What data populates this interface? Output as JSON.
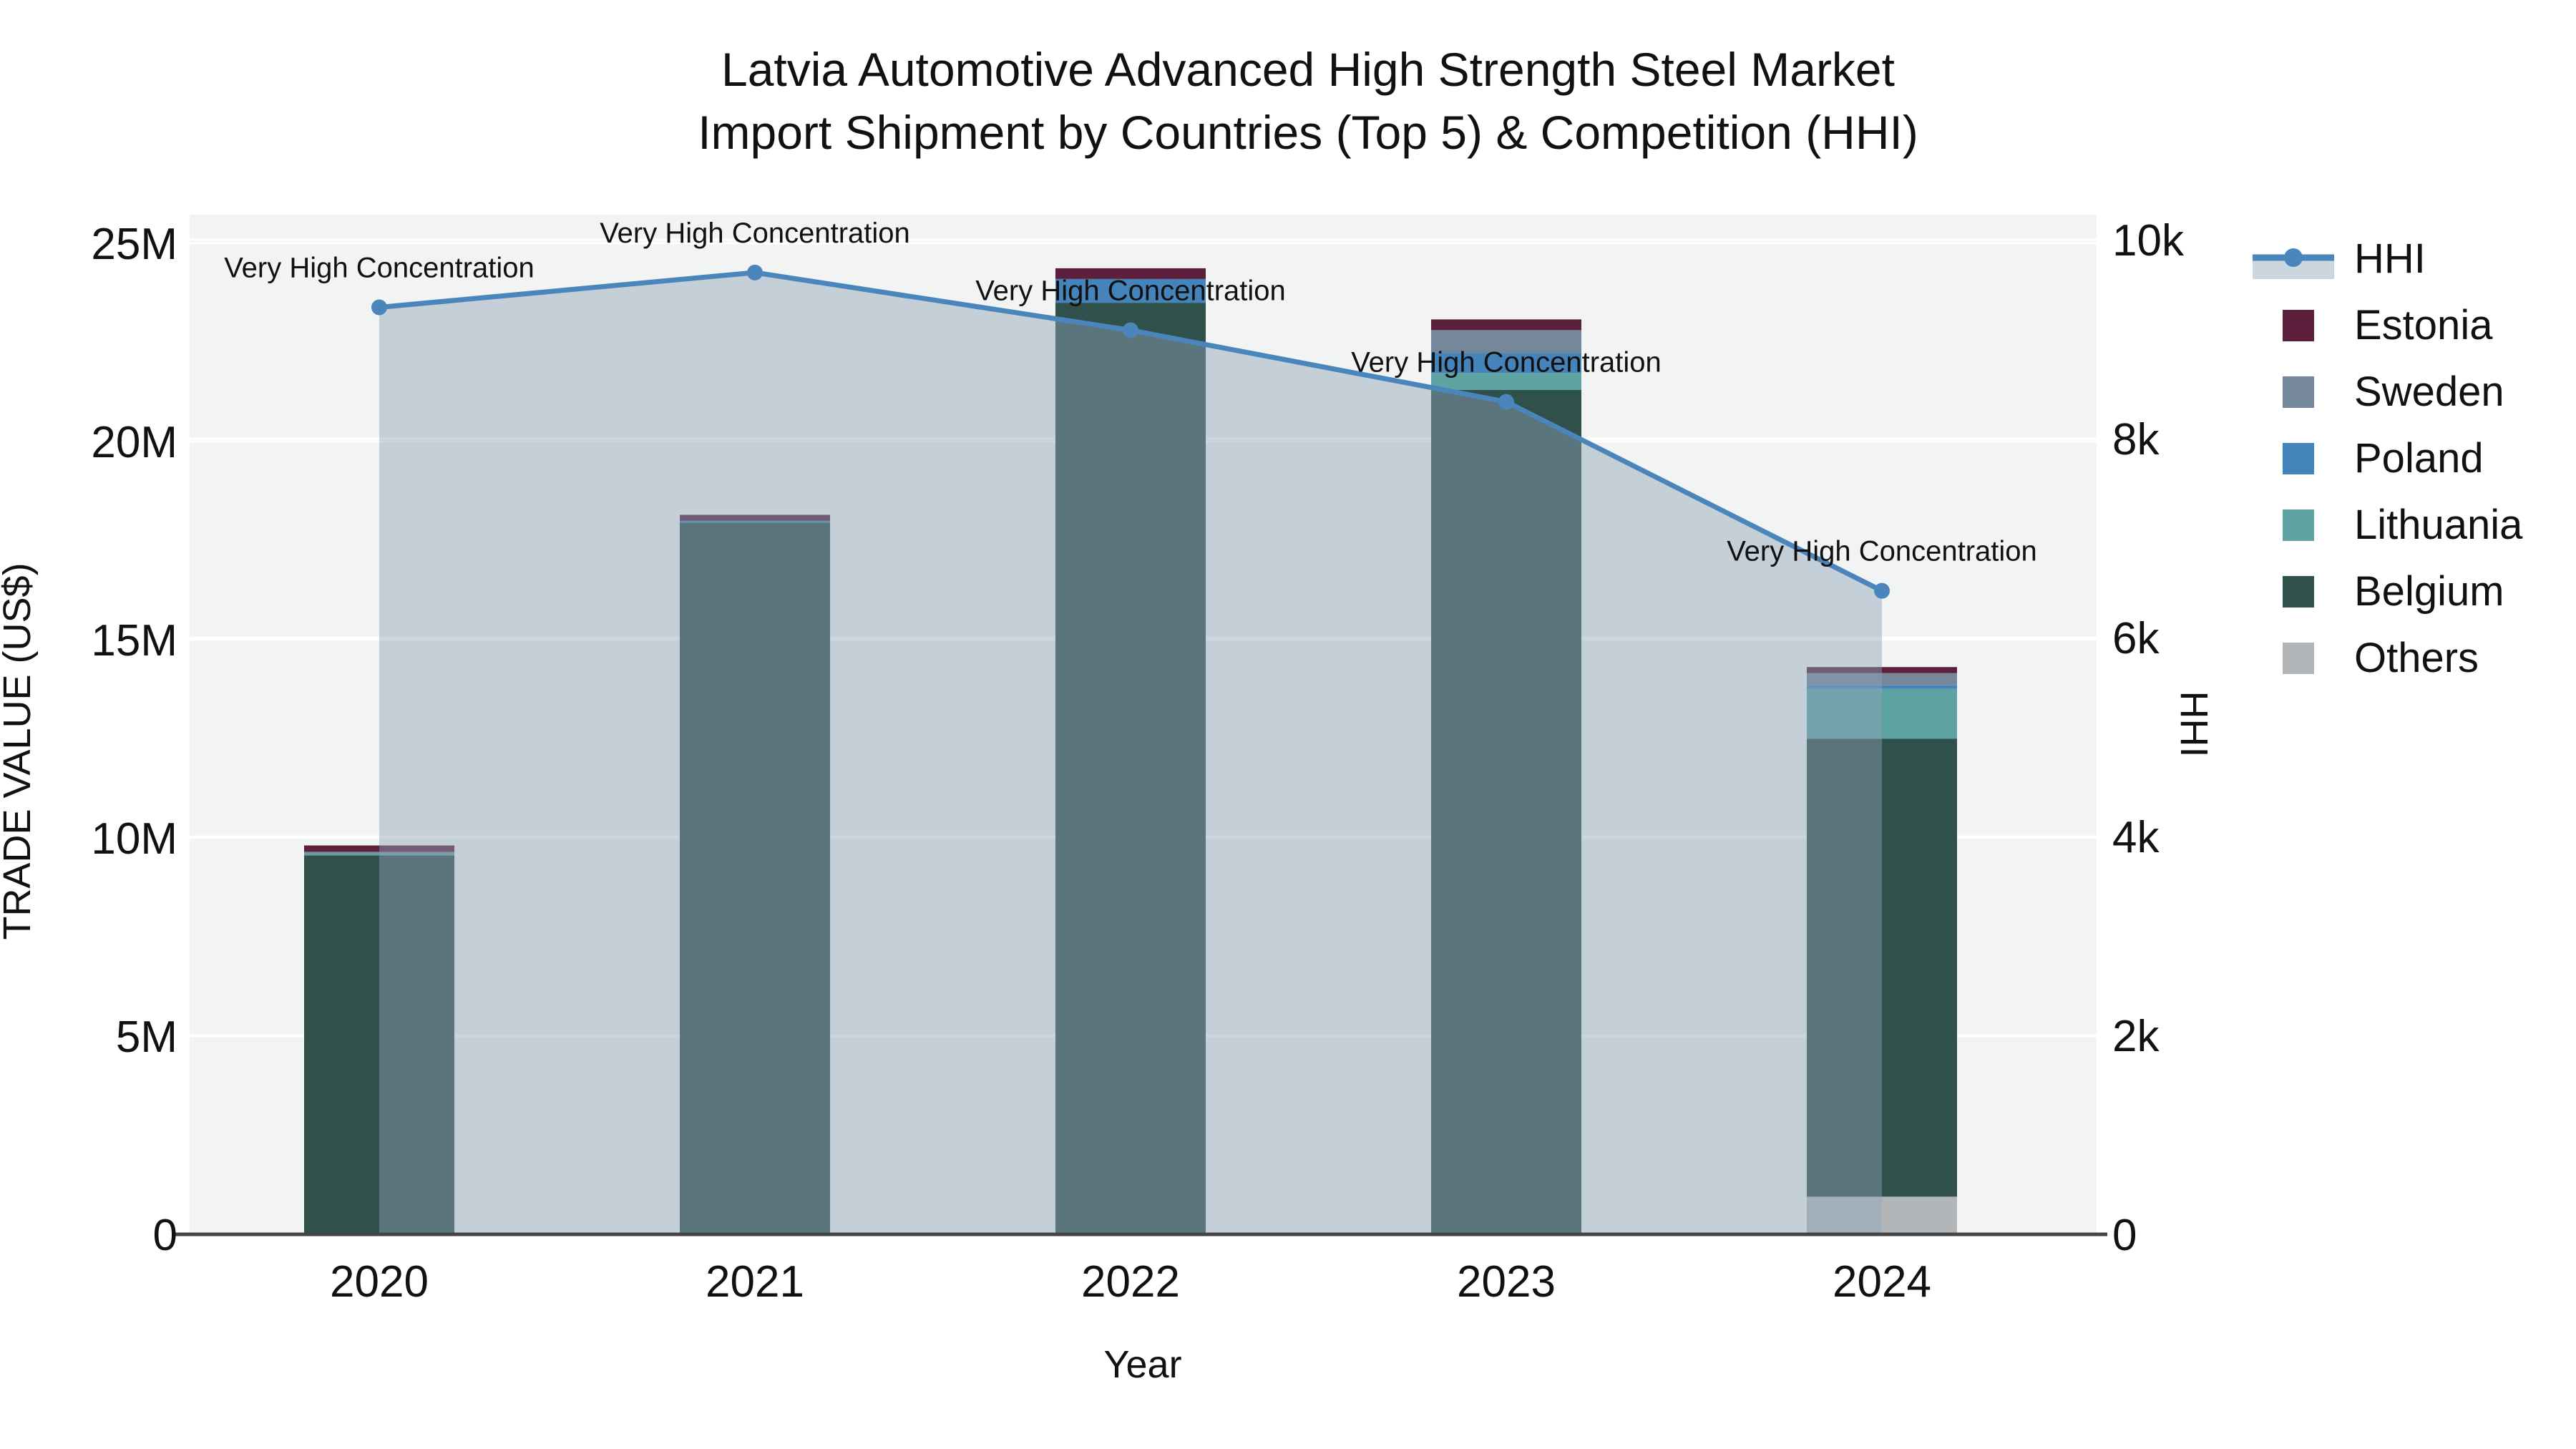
{
  "chart_data": {
    "type": "bar+line",
    "title_line1": "Latvia Automotive Advanced High Strength Steel Market",
    "title_line2": "Import Shipment by Countries (Top 5) & Competition (HHI)",
    "x_axis": {
      "title": "Year",
      "categories": [
        "2020",
        "2021",
        "2022",
        "2023",
        "2024"
      ]
    },
    "y_left": {
      "title": "TRADE VALUE (US$)",
      "range": [
        0,
        25000000
      ],
      "ticks": [
        {
          "value": 0,
          "label": "0"
        },
        {
          "value": 5000000,
          "label": "5M"
        },
        {
          "value": 10000000,
          "label": "10M"
        },
        {
          "value": 15000000,
          "label": "15M"
        },
        {
          "value": 20000000,
          "label": "20M"
        },
        {
          "value": 25000000,
          "label": "25M"
        }
      ]
    },
    "y_right": {
      "title": "HHI",
      "range": [
        0,
        10000
      ],
      "ticks": [
        {
          "value": 0,
          "label": "0"
        },
        {
          "value": 2000,
          "label": "2k"
        },
        {
          "value": 4000,
          "label": "4k"
        },
        {
          "value": 6000,
          "label": "6k"
        },
        {
          "value": 8000,
          "label": "8k"
        },
        {
          "value": 10000,
          "label": "10k"
        }
      ]
    },
    "bar_unit": "US$ millions",
    "bar_series_stack_bottom_to_top": [
      {
        "name": "Others",
        "color": "#B2B6B8",
        "values": [
          0.0,
          0.0,
          0.0,
          0.0,
          0.95
        ]
      },
      {
        "name": "Belgium",
        "color": "#30504C",
        "values": [
          9.56,
          17.95,
          23.5,
          21.3,
          11.55
        ]
      },
      {
        "name": "Lithuania",
        "color": "#5FA2A2",
        "values": [
          0.05,
          0.0,
          0.0,
          0.43,
          1.26
        ]
      },
      {
        "name": "Poland",
        "color": "#4484BB",
        "values": [
          0.0,
          0.05,
          0.6,
          0.5,
          0.09
        ]
      },
      {
        "name": "Sweden",
        "color": "#75879B",
        "values": [
          0.04,
          0.0,
          0.0,
          0.58,
          0.31
        ]
      },
      {
        "name": "Estonia",
        "color": "#5C1F3C",
        "values": [
          0.16,
          0.15,
          0.27,
          0.27,
          0.15
        ]
      }
    ],
    "line_series": {
      "name": "HHI",
      "color": "#4A86BB",
      "area_fill_color": "#8FA3B8",
      "area_fill_opacity": 0.45,
      "values": [
        9320,
        9670,
        9090,
        8370,
        6470
      ]
    },
    "annotation_text": "Very High Concentration",
    "annotations_per_point": [
      true,
      true,
      true,
      true,
      true
    ],
    "legend_order": [
      "HHI",
      "Estonia",
      "Sweden",
      "Poland",
      "Lithuania",
      "Belgium",
      "Others"
    ],
    "style": {
      "plot_bg": "#F2F3F3",
      "grid_color": "#FFFFFF",
      "axis_line_color": "#444444",
      "text_color": "#111111"
    }
  }
}
